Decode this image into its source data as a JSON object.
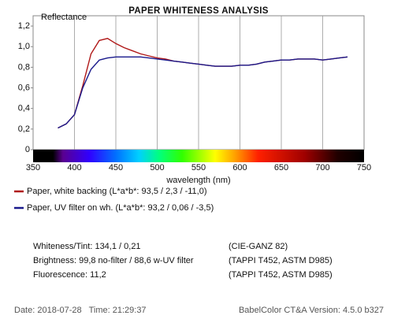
{
  "chart_data": {
    "type": "line",
    "title": "PAPER WHITENESS ANALYSIS",
    "y_label": "Reflectance",
    "x_label": "wavelength (nm)",
    "x": [
      380,
      390,
      400,
      410,
      420,
      430,
      440,
      450,
      460,
      470,
      480,
      490,
      500,
      510,
      520,
      530,
      540,
      550,
      560,
      570,
      580,
      590,
      600,
      610,
      620,
      630,
      640,
      650,
      660,
      670,
      680,
      690,
      700,
      710,
      720,
      730
    ],
    "series": [
      {
        "name": "Paper, white backing (L*a*b*: 93,5 / 2,3 / -11,0)",
        "color": "#b01818",
        "values": [
          0.21,
          0.25,
          0.34,
          0.62,
          0.93,
          1.06,
          1.08,
          1.03,
          0.99,
          0.96,
          0.93,
          0.91,
          0.89,
          0.88,
          0.86,
          0.85,
          0.84,
          0.83,
          0.82,
          0.81,
          0.81,
          0.81,
          0.82,
          0.82,
          0.83,
          0.85,
          0.86,
          0.87,
          0.87,
          0.88,
          0.88,
          0.88,
          0.87,
          0.88,
          0.89,
          0.9
        ]
      },
      {
        "name": "Paper, UV filter on wh. (L*a*b*: 93,2 / 0,06 / -3,5)",
        "color": "#1a1a8c",
        "values": [
          0.21,
          0.25,
          0.34,
          0.6,
          0.78,
          0.87,
          0.89,
          0.9,
          0.9,
          0.9,
          0.9,
          0.89,
          0.88,
          0.87,
          0.86,
          0.85,
          0.84,
          0.83,
          0.82,
          0.81,
          0.81,
          0.81,
          0.82,
          0.82,
          0.83,
          0.85,
          0.86,
          0.87,
          0.87,
          0.88,
          0.88,
          0.88,
          0.87,
          0.88,
          0.89,
          0.9
        ]
      }
    ],
    "xlim": [
      350,
      750
    ],
    "xticks": [
      350,
      400,
      450,
      500,
      550,
      600,
      650,
      700,
      750
    ],
    "ylim": [
      0,
      1.3
    ],
    "yticks": [
      0,
      {
        "value": 0.2,
        "label": "0,2"
      },
      {
        "value": 0.4,
        "label": "0,4"
      },
      {
        "value": 0.6,
        "label": "0,6"
      },
      {
        "value": 0.8,
        "label": "0,8"
      },
      {
        "value": 1.0,
        "label": "1,0"
      },
      {
        "value": 1.2,
        "label": "1,2"
      }
    ],
    "grid": true
  },
  "info": {
    "rows": [
      [
        "Whiteness/Tint: 134,1 / 0,21",
        "(CIE-GANZ 82)"
      ],
      [
        "Brightness: 99,8 no-filter / 88,6 w-UV filter",
        "(TAPPI T452, ASTM D985)"
      ],
      [
        "Fluorescence: 11,2",
        "(TAPPI T452, ASTM D985)"
      ]
    ]
  },
  "footer": {
    "datetime": "Date: 2018-07-28   Time: 21:29:37",
    "version": "BabelColor CT&A Version: 4.5.0 b327"
  }
}
